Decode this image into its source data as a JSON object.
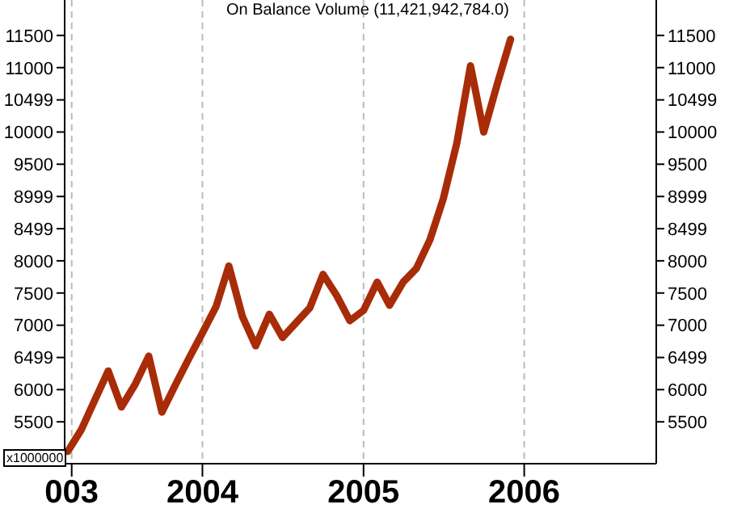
{
  "chart_data": {
    "type": "line",
    "title": "On Balance Volume (11,421,942,784.0)",
    "annotations": [
      "x1000000"
    ],
    "x": [
      "2003-03",
      "2003-04",
      "2003-05",
      "2003-06",
      "2003-07",
      "2003-08",
      "2003-09",
      "2003-10",
      "2003-11",
      "2003-12",
      "2004-01",
      "2004-02",
      "2004-03",
      "2004-04",
      "2004-05",
      "2004-06",
      "2004-07",
      "2004-08",
      "2004-09",
      "2004-10",
      "2004-11",
      "2004-12",
      "2005-01",
      "2005-02",
      "2005-03",
      "2005-04",
      "2005-05",
      "2005-06",
      "2005-07",
      "2005-08",
      "2005-09",
      "2005-10",
      "2005-11",
      "2005-12"
    ],
    "series": [
      {
        "color": "#a82c08",
        "values": [
          5040,
          5380,
          5830,
          6290,
          5730,
          6080,
          6520,
          5650,
          6080,
          6480,
          6880,
          7290,
          7920,
          7130,
          6680,
          7170,
          6810,
          7040,
          7270,
          7790,
          7460,
          7070,
          7230,
          7670,
          7310,
          7670,
          7880,
          8330,
          8960,
          9830,
          11030,
          10000,
          10750,
          11440
        ]
      }
    ],
    "xlim": [
      "2003-02-22",
      "2006-10-28"
    ],
    "xticks": [
      {
        "value": "2003-03-10",
        "label": "003"
      },
      "2004",
      "2005",
      "2006"
    ],
    "ylim": [
      4850,
      12050
    ],
    "yticks": [
      5500,
      6000,
      6499,
      7000,
      7500,
      8000,
      8499,
      8999,
      9500,
      10000,
      10499,
      11000,
      11500
    ],
    "y2lim": [
      4850,
      12050
    ],
    "y2ticks": [
      5500,
      6000,
      6499,
      7000,
      7500,
      8000,
      8499,
      8999,
      9500,
      10000,
      10499,
      11000,
      11500
    ],
    "grid": "x",
    "marker": "none",
    "line_style": "solid"
  }
}
